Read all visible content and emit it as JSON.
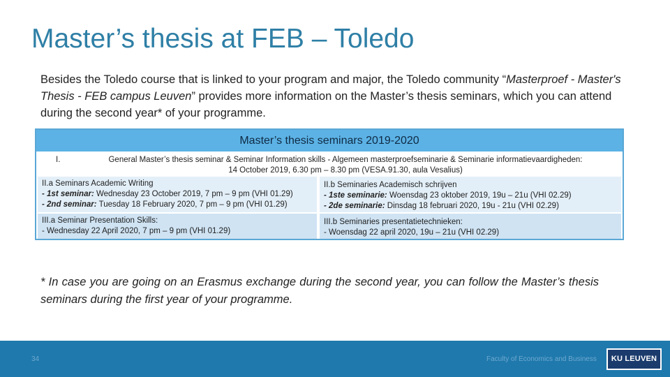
{
  "slide": {
    "title": "Master’s thesis at FEB – Toledo",
    "intro": {
      "part1": "Besides the Toledo course that is linked to your program and major, the Toledo community “",
      "italic": "Masterproef - Master's Thesis - FEB campus Leuven",
      "part2": "” provides more information on the Master’s thesis seminars, which you can attend during the second year* of your programme."
    },
    "table": {
      "header": "Master’s thesis seminars 2019-2020",
      "row1": {
        "number": "I.",
        "line1": "General Master’s thesis seminar & Seminar Information skills - Algemeen masterproefseminarie & Seminarie informatievaardigheden:",
        "line2": "14 October 2019, 6.30 pm – 8.30 pm (VESA.91.30, aula Vesalius)"
      },
      "row2": {
        "left": {
          "heading": "II.a Seminars Academic Writing",
          "item1_label": "- 1st seminar:",
          "item1_text": " Wednesday 23 October 2019, 7 pm – 9 pm (VHI 01.29)",
          "item2_label": "- 2nd seminar:",
          "item2_text": " Tuesday 18 February 2020, 7 pm – 9 pm (VHI 01.29)"
        },
        "right": {
          "heading": "II.b Seminaries Academisch schrijven",
          "item1_label": "- 1ste seminarie:",
          "item1_text": "  Woensdag 23 oktober 2019, 19u – 21u (VHI 02.29)",
          "item2_label": "- 2de seminarie:",
          "item2_text": " Dinsdag 18 februari 2020, 19u - 21u (VHI 02.29)"
        }
      },
      "row3": {
        "left": {
          "heading": "III.a Seminar Presentation Skills:",
          "item": "- Wednesday 22 April 2020, 7 pm – 9 pm (VHI 01.29)"
        },
        "right": {
          "heading": "III.b Seminaries presentatietechnieken:",
          "item": "- Woensdag 22 april 2020, 19u – 21u (VHI 02.29)"
        }
      }
    },
    "footnote": "* In case you are going on an Erasmus exchange during the second year, you can follow the Master’s thesis seminars during the first year of your programme.",
    "footer": {
      "page_number": "34",
      "faculty": "Faculty of Economics and Business",
      "logo_text": "KU LEUVEN"
    }
  }
}
